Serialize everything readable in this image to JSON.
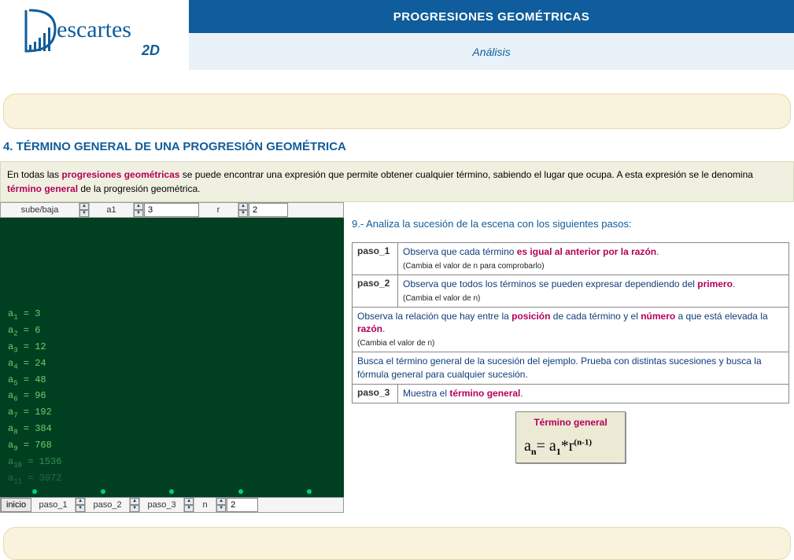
{
  "header": {
    "logo_text": "escartes",
    "logo_suffix": "2D",
    "title": "PROGRESIONES GEOMÉTRICAS",
    "subtitle": "Análisis"
  },
  "section": {
    "title": "4. TÉRMINO GENERAL DE UNA PROGRESIÓN GEOMÉTRICA",
    "intro_pre": "En todas las ",
    "intro_hl1": "progresiones geométricas",
    "intro_mid": " se puede encontrar una expresión que permite obtener cualquier término, sabiendo el lugar que ocupa. A esta expresión se le denomina ",
    "intro_hl2": "término general",
    "intro_post": " de la progresión geométrica."
  },
  "scene": {
    "controls_top": {
      "sube_baja_label": "sube/baja",
      "a1_label": "a1",
      "a1_value": "3",
      "r_label": "r",
      "r_value": "2"
    },
    "terms": [
      {
        "idx": "1",
        "val": "3"
      },
      {
        "idx": "2",
        "val": "6"
      },
      {
        "idx": "3",
        "val": "12"
      },
      {
        "idx": "4",
        "val": "24"
      },
      {
        "idx": "5",
        "val": "48"
      },
      {
        "idx": "6",
        "val": "96"
      },
      {
        "idx": "7",
        "val": "192"
      },
      {
        "idx": "8",
        "val": "384"
      },
      {
        "idx": "9",
        "val": "768"
      },
      {
        "idx": "10",
        "val": "1536"
      },
      {
        "idx": "11",
        "val": "3072"
      }
    ],
    "controls_bottom": {
      "inicio": "inicio",
      "paso1_label": "paso_1",
      "paso2_label": "paso_2",
      "paso3_label": "paso_3",
      "n_label": "n",
      "n_value": "2"
    }
  },
  "steps": {
    "intro": "9.- Analiza la sucesión de la escena con los siguientes pasos:",
    "rows": [
      {
        "tag": "paso_1",
        "body_pre": "Observa que cada término ",
        "hl": "es igual al anterior  por la razón",
        "body_post": ".",
        "note": "(Cambia el valor de n para comprobarlo)"
      },
      {
        "tag": "paso_2",
        "body_pre": "Observa que todos los términos se pueden expresar dependiendo del ",
        "hl": "primero",
        "body_post": ".",
        "note": "(Cambia el valor de n)"
      }
    ],
    "merged": [
      {
        "body_pre": "Observa la relación que hay entre la ",
        "hl1": "posición",
        "mid": " de cada término y el ",
        "hl2": "número",
        "mid2": " a que está elevada la ",
        "hl3": "razón",
        "post": ".",
        "note": "(Cambia el valor de n)"
      },
      {
        "body_pre": "Busca el término general de la sucesión del ejemplo. Prueba con distintas sucesiones y busca la fórmula general para cualquier sucesión.",
        "hl1": "",
        "mid": "",
        "hl2": "",
        "mid2": "",
        "hl3": "",
        "post": "",
        "note": ""
      }
    ],
    "last": {
      "tag": "paso_3",
      "body_pre": "Muestra el ",
      "hl": "término general",
      "body_post": "."
    }
  },
  "general_term": {
    "title": "Término general",
    "lhs_base": "a",
    "lhs_sub": "n",
    "eq": "=  ",
    "rhs": "a",
    "rhs_sub": "1",
    "mul": "*r",
    "exp": "(n-1)"
  }
}
